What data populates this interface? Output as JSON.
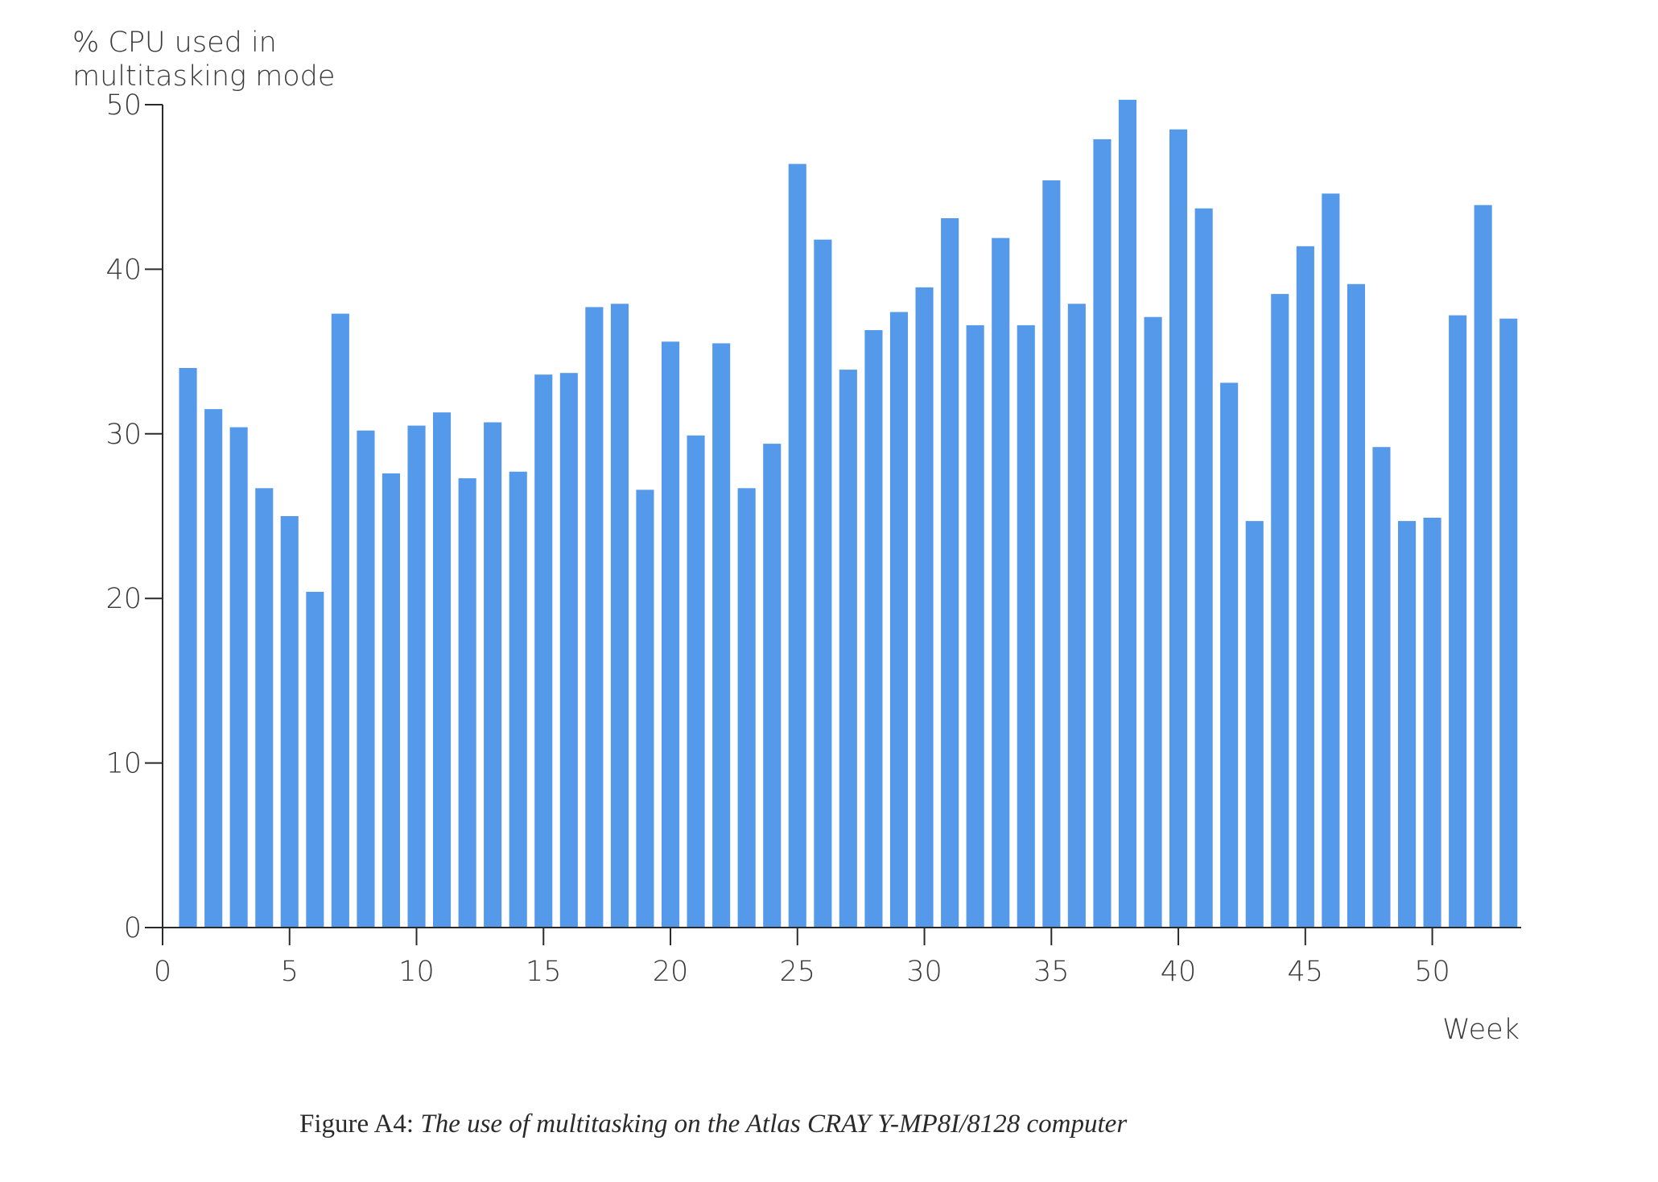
{
  "chart_data": {
    "type": "bar",
    "ylabel_lines": [
      "% CPU used in",
      "multitasking mode"
    ],
    "xlabel": "Week",
    "xlim": [
      0,
      53.5
    ],
    "ylim": [
      0,
      50
    ],
    "x_ticks": [
      0,
      5,
      10,
      15,
      20,
      25,
      30,
      35,
      40,
      45,
      50
    ],
    "y_ticks": [
      0,
      10,
      20,
      30,
      40,
      50
    ],
    "grid": false,
    "color": "#5599ea",
    "series": [
      {
        "name": "% CPU used in multitasking mode",
        "x": [
          1,
          2,
          3,
          4,
          5,
          6,
          7,
          8,
          9,
          10,
          11,
          12,
          13,
          14,
          15,
          16,
          17,
          18,
          19,
          20,
          21,
          22,
          23,
          24,
          25,
          26,
          27,
          28,
          29,
          30,
          31,
          32,
          33,
          34,
          35,
          36,
          37,
          38,
          39,
          40,
          41,
          42,
          43,
          44,
          45,
          46,
          47,
          48,
          49,
          50,
          51,
          52,
          53
        ],
        "values": [
          34.0,
          31.5,
          30.4,
          26.7,
          25.0,
          20.4,
          37.3,
          30.2,
          27.6,
          30.5,
          31.3,
          27.3,
          30.7,
          27.7,
          33.6,
          33.7,
          37.7,
          37.9,
          26.6,
          35.6,
          29.9,
          35.5,
          26.7,
          29.4,
          46.4,
          41.8,
          33.9,
          36.3,
          37.4,
          38.9,
          43.1,
          36.6,
          41.9,
          36.6,
          45.4,
          37.9,
          47.9,
          50.3,
          37.1,
          48.5,
          43.7,
          33.1,
          24.7,
          38.5,
          41.4,
          44.6,
          39.1,
          29.2,
          24.7,
          24.9,
          37.2,
          43.9,
          37.0
        ]
      }
    ]
  },
  "caption": {
    "label": "Figure A4:",
    "text": "The use of multitasking on the Atlas CRAY Y-MP8I/8128 computer"
  }
}
